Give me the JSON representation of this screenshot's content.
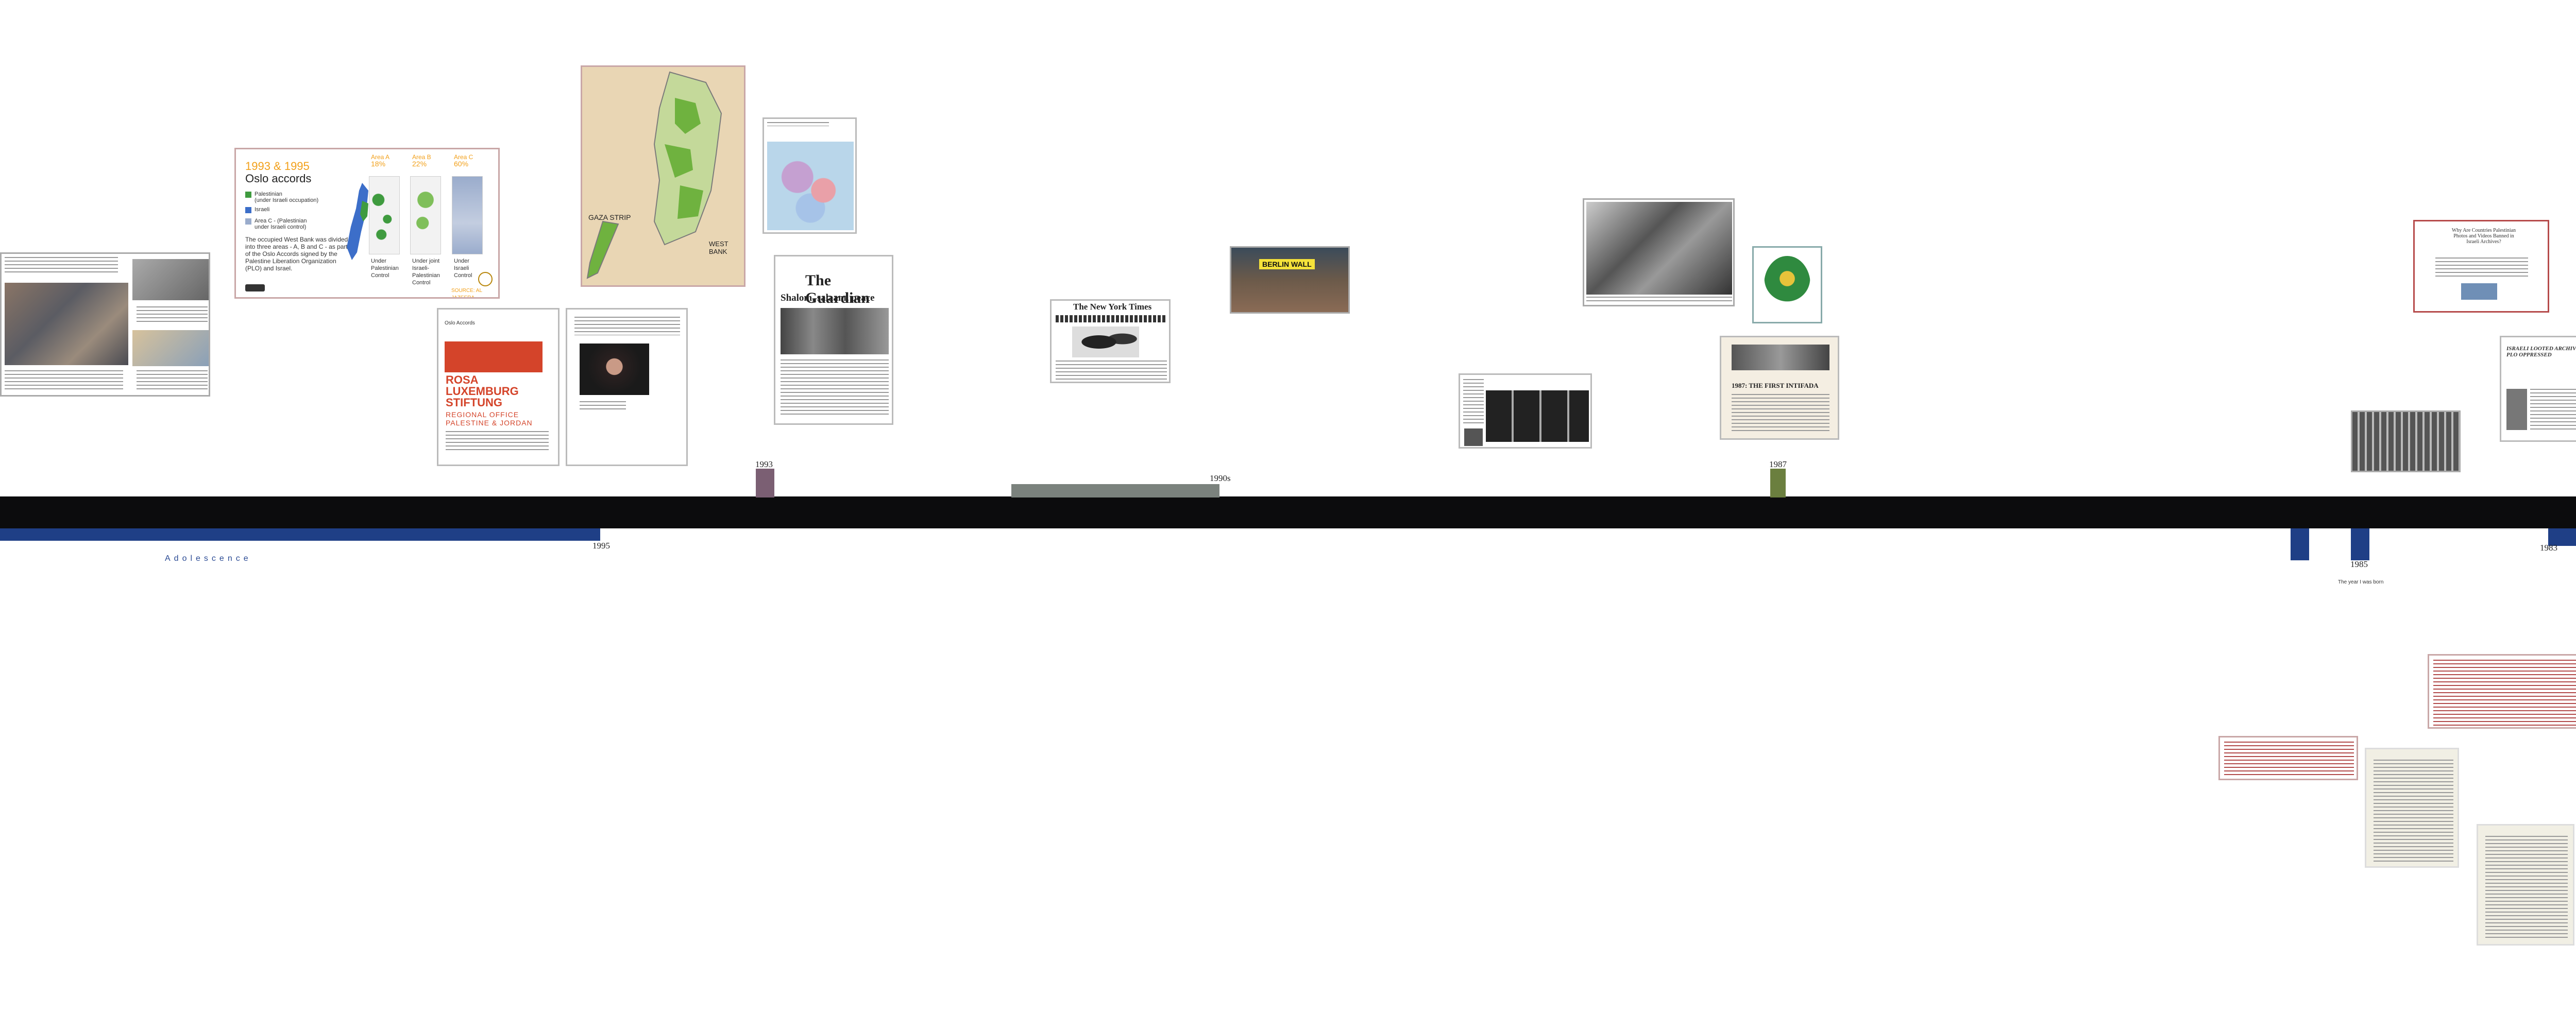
{
  "timeline": {
    "period_label": "Adolescence",
    "years": {
      "y1995a": "1995",
      "y1993": "1993",
      "y1990s": "1990s",
      "y1987": "1987",
      "y1985": "1985",
      "y1983": "1983"
    },
    "note_1985": "The year I was born"
  },
  "items": {
    "oslo": {
      "years": "1993 & 1995",
      "title": "Oslo accords",
      "legend": [
        "Palestinian",
        "(under Israeli occupation)",
        "Israeli",
        "Area C - (Palestinian",
        "under Israeli control)"
      ],
      "text": "The occupied West Bank was divided into three areas - A, B and C - as part of the Oslo Accords signed by the Palestine Liberation Organization (PLO) and Israel.",
      "areas": [
        {
          "name": "Area A",
          "pct": "18%",
          "label": "Under Palestinian Control"
        },
        {
          "name": "Area B",
          "pct": "22%",
          "label": "Under joint Israeli-Palestinian Control"
        },
        {
          "name": "Area C",
          "pct": "60%",
          "label": "Under Israeli Control"
        }
      ],
      "source": "SOURCE: AL JAZEERA"
    },
    "rosa": {
      "header": "Oslo Accords",
      "logo_lines": [
        "ROSA",
        "LUXEMBURG",
        "STIFTUNG"
      ],
      "sub_lines": [
        "REGIONAL OFFICE",
        "PALESTINE & JORDAN"
      ]
    },
    "map": {
      "labels": [
        "GAZA STRIP",
        "WEST BANK"
      ]
    },
    "guardian": {
      "masthead": "The Guardian",
      "headline": "Shalom, salaam, peace"
    },
    "nyt": {
      "masthead": "The New York Times"
    },
    "berlin": {
      "sign": "BERLIN WALL"
    },
    "intifada": {
      "headline": "1987: THE FIRST INTIFADA"
    },
    "article_right": {
      "headline": "Why Are Countries Palestinian Photos and Videos Banned in Israeli Archives?"
    },
    "archives": {
      "label": "ISRAELI LOOTED ARCHIVES: PLO OPPRESSED"
    }
  },
  "colors": {
    "axis": "#0c0c0d",
    "blue": "#1f3f86",
    "oslo_orange": "#f2a01a",
    "rosa_red": "#d4442a"
  }
}
